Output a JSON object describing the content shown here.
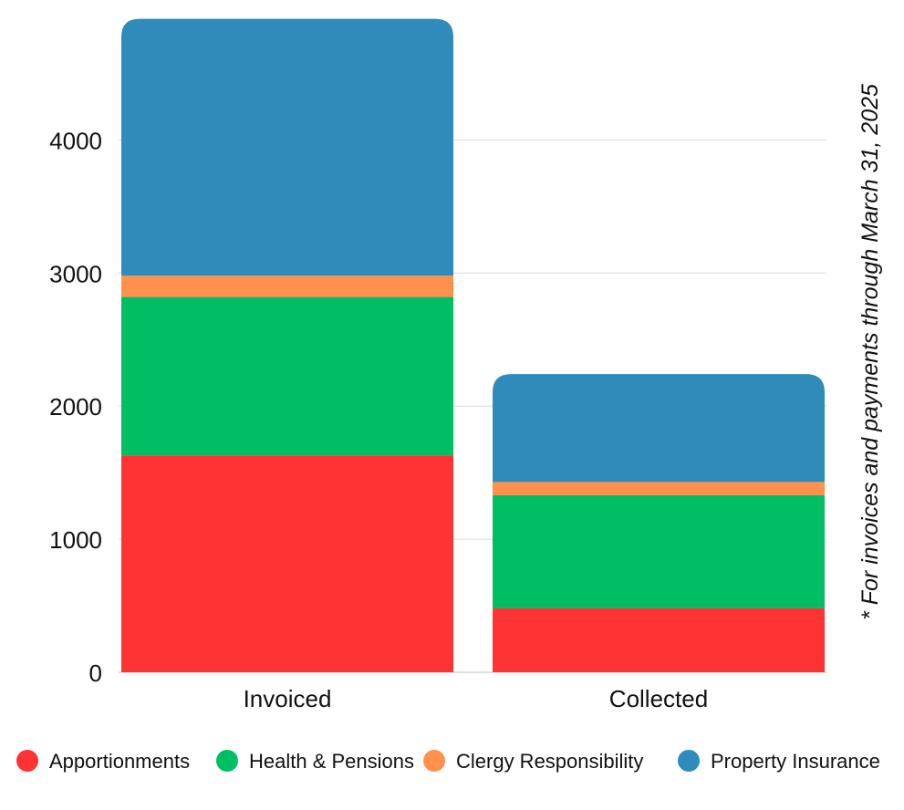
{
  "chart_data": {
    "type": "bar",
    "stacked": true,
    "categories": [
      "Invoiced",
      "Collected"
    ],
    "series": [
      {
        "name": "Apportionments",
        "color": "#ff3333",
        "values": [
          1630,
          480
        ]
      },
      {
        "name": "Health & Pensions",
        "color": "#00bf63",
        "values": [
          1190,
          850
        ]
      },
      {
        "name": "Clergy Responsibility",
        "color": "#ff914d",
        "values": [
          160,
          100
        ]
      },
      {
        "name": "Property Insurance",
        "color": "#2e8bba",
        "values": [
          1930,
          810
        ]
      }
    ],
    "yticks": [
      0,
      1000,
      2000,
      3000,
      4000
    ],
    "ylim": [
      0,
      4900
    ],
    "grid": true,
    "legend_position": "bottom",
    "annotation": "* For invoices and payments through March 31, 2025"
  }
}
